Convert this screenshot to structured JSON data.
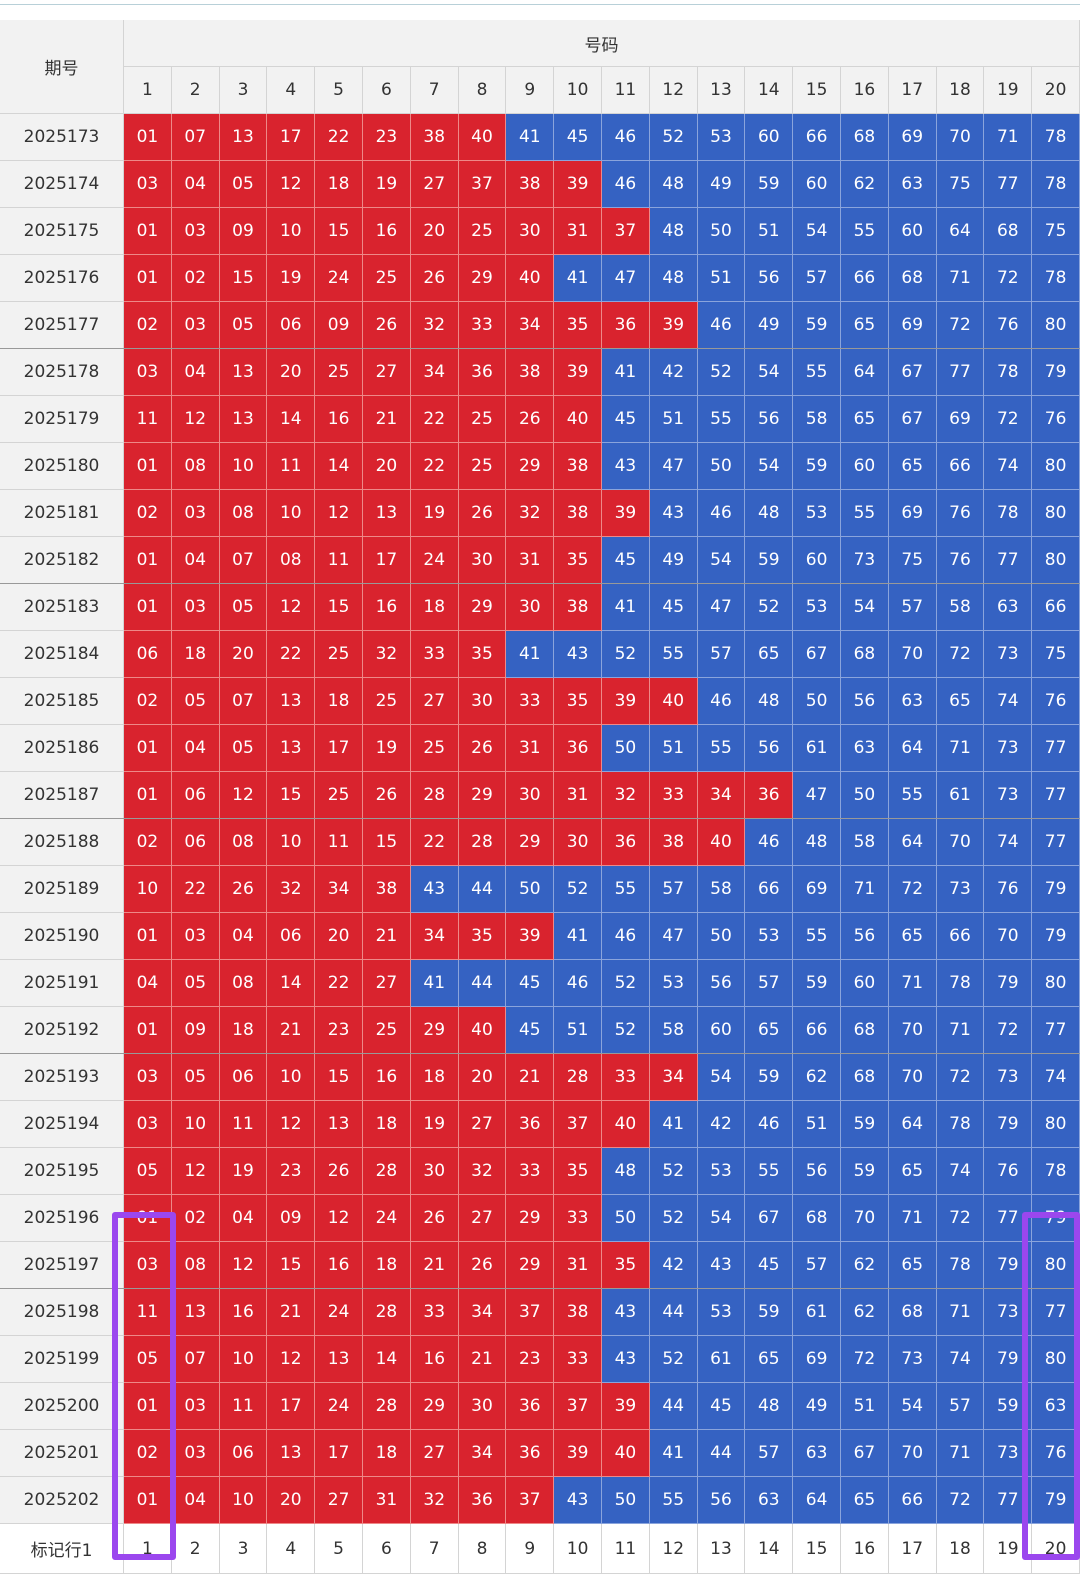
{
  "header": {
    "group_label": "期号",
    "numbers_label": "号码",
    "columns": [
      "1",
      "2",
      "3",
      "4",
      "5",
      "6",
      "7",
      "8",
      "9",
      "10",
      "11",
      "12",
      "13",
      "14",
      "15",
      "16",
      "17",
      "18",
      "19",
      "20"
    ]
  },
  "rows": [
    {
      "period": "2025173",
      "numbers": [
        "01",
        "07",
        "13",
        "17",
        "22",
        "23",
        "38",
        "40",
        "41",
        "45",
        "46",
        "52",
        "53",
        "60",
        "66",
        "68",
        "69",
        "70",
        "71",
        "78"
      ]
    },
    {
      "period": "2025174",
      "numbers": [
        "03",
        "04",
        "05",
        "12",
        "18",
        "19",
        "27",
        "37",
        "38",
        "39",
        "46",
        "48",
        "49",
        "59",
        "60",
        "62",
        "63",
        "75",
        "77",
        "78"
      ]
    },
    {
      "period": "2025175",
      "numbers": [
        "01",
        "03",
        "09",
        "10",
        "15",
        "16",
        "20",
        "25",
        "30",
        "31",
        "37",
        "48",
        "50",
        "51",
        "54",
        "55",
        "60",
        "64",
        "68",
        "75"
      ]
    },
    {
      "period": "2025176",
      "numbers": [
        "01",
        "02",
        "15",
        "19",
        "24",
        "25",
        "26",
        "29",
        "40",
        "41",
        "47",
        "48",
        "51",
        "56",
        "57",
        "66",
        "68",
        "71",
        "72",
        "78"
      ]
    },
    {
      "period": "2025177",
      "numbers": [
        "02",
        "03",
        "05",
        "06",
        "09",
        "26",
        "32",
        "33",
        "34",
        "35",
        "36",
        "39",
        "46",
        "49",
        "59",
        "65",
        "69",
        "72",
        "76",
        "80"
      ]
    },
    {
      "period": "2025178",
      "numbers": [
        "03",
        "04",
        "13",
        "20",
        "25",
        "27",
        "34",
        "36",
        "38",
        "39",
        "41",
        "42",
        "52",
        "54",
        "55",
        "64",
        "67",
        "77",
        "78",
        "79"
      ]
    },
    {
      "period": "2025179",
      "numbers": [
        "11",
        "12",
        "13",
        "14",
        "16",
        "21",
        "22",
        "25",
        "26",
        "40",
        "45",
        "51",
        "55",
        "56",
        "58",
        "65",
        "67",
        "69",
        "72",
        "76"
      ]
    },
    {
      "period": "2025180",
      "numbers": [
        "01",
        "08",
        "10",
        "11",
        "14",
        "20",
        "22",
        "25",
        "29",
        "38",
        "43",
        "47",
        "50",
        "54",
        "59",
        "60",
        "65",
        "66",
        "74",
        "80"
      ]
    },
    {
      "period": "2025181",
      "numbers": [
        "02",
        "03",
        "08",
        "10",
        "12",
        "13",
        "19",
        "26",
        "32",
        "38",
        "39",
        "43",
        "46",
        "48",
        "53",
        "55",
        "69",
        "76",
        "78",
        "80"
      ]
    },
    {
      "period": "2025182",
      "numbers": [
        "01",
        "04",
        "07",
        "08",
        "11",
        "17",
        "24",
        "30",
        "31",
        "35",
        "45",
        "49",
        "54",
        "59",
        "60",
        "73",
        "75",
        "76",
        "77",
        "80"
      ]
    },
    {
      "period": "2025183",
      "numbers": [
        "01",
        "03",
        "05",
        "12",
        "15",
        "16",
        "18",
        "29",
        "30",
        "38",
        "41",
        "45",
        "47",
        "52",
        "53",
        "54",
        "57",
        "58",
        "63",
        "66"
      ]
    },
    {
      "period": "2025184",
      "numbers": [
        "06",
        "18",
        "20",
        "22",
        "25",
        "32",
        "33",
        "35",
        "41",
        "43",
        "52",
        "55",
        "57",
        "65",
        "67",
        "68",
        "70",
        "72",
        "73",
        "75"
      ]
    },
    {
      "period": "2025185",
      "numbers": [
        "02",
        "05",
        "07",
        "13",
        "18",
        "25",
        "27",
        "30",
        "33",
        "35",
        "39",
        "40",
        "46",
        "48",
        "50",
        "56",
        "63",
        "65",
        "74",
        "76"
      ]
    },
    {
      "period": "2025186",
      "numbers": [
        "01",
        "04",
        "05",
        "13",
        "17",
        "19",
        "25",
        "26",
        "31",
        "36",
        "50",
        "51",
        "55",
        "56",
        "61",
        "63",
        "64",
        "71",
        "73",
        "77"
      ]
    },
    {
      "period": "2025187",
      "numbers": [
        "01",
        "06",
        "12",
        "15",
        "25",
        "26",
        "28",
        "29",
        "30",
        "31",
        "32",
        "33",
        "34",
        "36",
        "47",
        "50",
        "55",
        "61",
        "73",
        "77"
      ]
    },
    {
      "period": "2025188",
      "numbers": [
        "02",
        "06",
        "08",
        "10",
        "11",
        "15",
        "22",
        "28",
        "29",
        "30",
        "36",
        "38",
        "40",
        "46",
        "48",
        "58",
        "64",
        "70",
        "74",
        "77"
      ]
    },
    {
      "period": "2025189",
      "numbers": [
        "10",
        "22",
        "26",
        "32",
        "34",
        "38",
        "43",
        "44",
        "50",
        "52",
        "55",
        "57",
        "58",
        "66",
        "69",
        "71",
        "72",
        "73",
        "76",
        "79"
      ]
    },
    {
      "period": "2025190",
      "numbers": [
        "01",
        "03",
        "04",
        "06",
        "20",
        "21",
        "34",
        "35",
        "39",
        "41",
        "46",
        "47",
        "50",
        "53",
        "55",
        "56",
        "65",
        "66",
        "70",
        "79"
      ]
    },
    {
      "period": "2025191",
      "numbers": [
        "04",
        "05",
        "08",
        "14",
        "22",
        "27",
        "41",
        "44",
        "45",
        "46",
        "52",
        "53",
        "56",
        "57",
        "59",
        "60",
        "71",
        "78",
        "79",
        "80"
      ]
    },
    {
      "period": "2025192",
      "numbers": [
        "01",
        "09",
        "18",
        "21",
        "23",
        "25",
        "29",
        "40",
        "45",
        "51",
        "52",
        "58",
        "60",
        "65",
        "66",
        "68",
        "70",
        "71",
        "72",
        "77"
      ]
    },
    {
      "period": "2025193",
      "numbers": [
        "03",
        "05",
        "06",
        "10",
        "15",
        "16",
        "18",
        "20",
        "21",
        "28",
        "33",
        "34",
        "54",
        "59",
        "62",
        "68",
        "70",
        "72",
        "73",
        "74"
      ]
    },
    {
      "period": "2025194",
      "numbers": [
        "03",
        "10",
        "11",
        "12",
        "13",
        "18",
        "19",
        "27",
        "36",
        "37",
        "40",
        "41",
        "42",
        "46",
        "51",
        "59",
        "64",
        "78",
        "79",
        "80"
      ]
    },
    {
      "period": "2025195",
      "numbers": [
        "05",
        "12",
        "19",
        "23",
        "26",
        "28",
        "30",
        "32",
        "33",
        "35",
        "48",
        "52",
        "53",
        "55",
        "56",
        "59",
        "65",
        "74",
        "76",
        "78"
      ]
    },
    {
      "period": "2025196",
      "numbers": [
        "01",
        "02",
        "04",
        "09",
        "12",
        "24",
        "26",
        "27",
        "29",
        "33",
        "50",
        "52",
        "54",
        "67",
        "68",
        "70",
        "71",
        "72",
        "77",
        "79"
      ]
    },
    {
      "period": "2025197",
      "numbers": [
        "03",
        "08",
        "12",
        "15",
        "16",
        "18",
        "21",
        "26",
        "29",
        "31",
        "35",
        "42",
        "43",
        "45",
        "57",
        "62",
        "65",
        "78",
        "79",
        "80"
      ]
    },
    {
      "period": "2025198",
      "numbers": [
        "11",
        "13",
        "16",
        "21",
        "24",
        "28",
        "33",
        "34",
        "37",
        "38",
        "43",
        "44",
        "53",
        "59",
        "61",
        "62",
        "68",
        "71",
        "73",
        "77"
      ]
    },
    {
      "period": "2025199",
      "numbers": [
        "05",
        "07",
        "10",
        "12",
        "13",
        "14",
        "16",
        "21",
        "23",
        "33",
        "43",
        "52",
        "61",
        "65",
        "69",
        "72",
        "73",
        "74",
        "79",
        "80"
      ]
    },
    {
      "period": "2025200",
      "numbers": [
        "01",
        "03",
        "11",
        "17",
        "24",
        "28",
        "29",
        "30",
        "36",
        "37",
        "39",
        "44",
        "45",
        "48",
        "49",
        "51",
        "54",
        "57",
        "59",
        "63"
      ]
    },
    {
      "period": "2025201",
      "numbers": [
        "02",
        "03",
        "06",
        "13",
        "17",
        "18",
        "27",
        "34",
        "36",
        "39",
        "40",
        "41",
        "44",
        "57",
        "63",
        "67",
        "70",
        "71",
        "73",
        "76"
      ]
    },
    {
      "period": "2025202",
      "numbers": [
        "01",
        "04",
        "10",
        "20",
        "27",
        "31",
        "32",
        "36",
        "37",
        "43",
        "50",
        "55",
        "56",
        "63",
        "64",
        "65",
        "66",
        "72",
        "77",
        "79"
      ]
    }
  ],
  "footer": {
    "label": "标记行1",
    "columns": [
      "1",
      "2",
      "3",
      "4",
      "5",
      "6",
      "7",
      "8",
      "9",
      "10",
      "11",
      "12",
      "13",
      "14",
      "15",
      "16",
      "17",
      "18",
      "19",
      "20"
    ]
  }
}
